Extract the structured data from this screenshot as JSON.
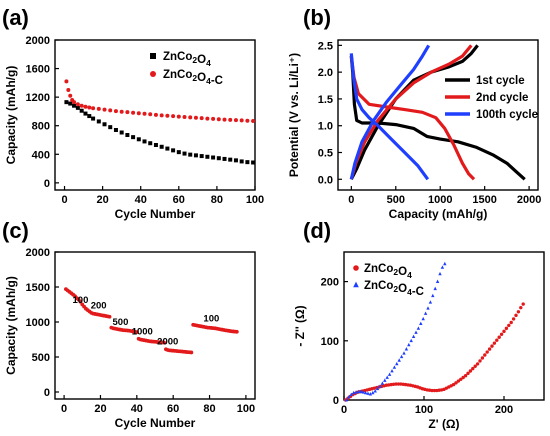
{
  "chart_data": [
    {
      "panel": "(a)",
      "type": "scatter",
      "xlabel": "Cycle Number",
      "ylabel": "Capacity (mAh/g)",
      "xlim": [
        -5,
        100
      ],
      "ylim": [
        -100,
        2000
      ],
      "xticks": [
        0,
        20,
        40,
        60,
        80,
        100
      ],
      "yticks": [
        0,
        400,
        800,
        1200,
        1600,
        2000
      ],
      "legend_position": "top-right",
      "series": [
        {
          "name": "ZnCo₂O₄",
          "color": "#000000",
          "marker": "square",
          "x": [
            1,
            3,
            5,
            7,
            9,
            11,
            13,
            15,
            18,
            21,
            24,
            27,
            30,
            33,
            36,
            39,
            42,
            45,
            48,
            51,
            54,
            57,
            60,
            63,
            66,
            69,
            72,
            75,
            78,
            81,
            84,
            87,
            90,
            93,
            96,
            99
          ],
          "y": [
            1130,
            1110,
            1080,
            1050,
            1010,
            970,
            935,
            900,
            860,
            820,
            780,
            740,
            705,
            670,
            640,
            610,
            580,
            555,
            530,
            505,
            480,
            455,
            430,
            410,
            395,
            385,
            375,
            365,
            355,
            345,
            335,
            325,
            315,
            300,
            290,
            285
          ]
        },
        {
          "name": "ZnCo₂O₄-C",
          "color": "#e31a1c",
          "marker": "circle",
          "x": [
            1,
            2,
            3,
            4,
            5,
            7,
            9,
            11,
            13,
            15,
            18,
            21,
            24,
            27,
            30,
            33,
            36,
            39,
            42,
            45,
            48,
            51,
            54,
            57,
            60,
            63,
            66,
            69,
            72,
            75,
            78,
            81,
            84,
            87,
            90,
            93,
            96,
            99
          ],
          "y": [
            1420,
            1300,
            1220,
            1160,
            1130,
            1100,
            1080,
            1065,
            1055,
            1045,
            1035,
            1025,
            1015,
            1005,
            995,
            990,
            982,
            975,
            968,
            960,
            952,
            945,
            940,
            934,
            928,
            922,
            917,
            912,
            906,
            900,
            895,
            890,
            886,
            882,
            878,
            874,
            870,
            866
          ]
        }
      ]
    },
    {
      "panel": "(b)",
      "type": "line",
      "xlabel": "Capacity (mAh/g)",
      "ylabel": "Potential (V vs. Li/Li⁺)",
      "xlim": [
        -150,
        2100
      ],
      "ylim": [
        -0.2,
        2.6
      ],
      "xticks": [
        0,
        500,
        1000,
        1500,
        2000
      ],
      "yticks": [
        0.0,
        0.5,
        1.0,
        1.5,
        2.0,
        2.5
      ],
      "legend_position": "center-right",
      "series": [
        {
          "name": "1st cycle",
          "color": "#000000",
          "discharge": [
            [
              0,
              2.3
            ],
            [
              15,
              2.0
            ],
            [
              35,
              1.4
            ],
            [
              60,
              1.1
            ],
            [
              120,
              1.05
            ],
            [
              300,
              1.05
            ],
            [
              500,
              1.02
            ],
            [
              700,
              0.95
            ],
            [
              850,
              0.8
            ],
            [
              1000,
              0.75
            ],
            [
              1200,
              0.7
            ],
            [
              1400,
              0.6
            ],
            [
              1600,
              0.45
            ],
            [
              1750,
              0.3
            ],
            [
              1850,
              0.15
            ],
            [
              1950,
              0.0
            ]
          ],
          "charge": [
            [
              0,
              0.0
            ],
            [
              60,
              0.2
            ],
            [
              150,
              0.55
            ],
            [
              300,
              1.0
            ],
            [
              500,
              1.5
            ],
            [
              700,
              1.85
            ],
            [
              900,
              2.0
            ],
            [
              1100,
              2.1
            ],
            [
              1250,
              2.2
            ],
            [
              1350,
              2.35
            ],
            [
              1420,
              2.5
            ]
          ]
        },
        {
          "name": "2nd cycle",
          "color": "#e31a1c",
          "discharge": [
            [
              0,
              2.3
            ],
            [
              30,
              1.9
            ],
            [
              80,
              1.6
            ],
            [
              200,
              1.4
            ],
            [
              400,
              1.35
            ],
            [
              600,
              1.3
            ],
            [
              800,
              1.25
            ],
            [
              950,
              1.15
            ],
            [
              1050,
              0.95
            ],
            [
              1150,
              0.65
            ],
            [
              1250,
              0.3
            ],
            [
              1320,
              0.1
            ],
            [
              1380,
              0.0
            ]
          ],
          "charge": [
            [
              0,
              0.0
            ],
            [
              50,
              0.3
            ],
            [
              150,
              0.7
            ],
            [
              300,
              1.1
            ],
            [
              500,
              1.5
            ],
            [
              700,
              1.8
            ],
            [
              900,
              2.0
            ],
            [
              1100,
              2.15
            ],
            [
              1250,
              2.3
            ],
            [
              1350,
              2.5
            ]
          ]
        },
        {
          "name": "100th cycle",
          "color": "#1f3fff",
          "discharge": [
            [
              0,
              2.35
            ],
            [
              25,
              1.9
            ],
            [
              60,
              1.5
            ],
            [
              120,
              1.3
            ],
            [
              200,
              1.15
            ],
            [
              300,
              1.0
            ],
            [
              450,
              0.75
            ],
            [
              600,
              0.5
            ],
            [
              750,
              0.25
            ],
            [
              860,
              0.0
            ]
          ],
          "charge": [
            [
              0,
              0.0
            ],
            [
              40,
              0.3
            ],
            [
              120,
              0.7
            ],
            [
              250,
              1.1
            ],
            [
              400,
              1.45
            ],
            [
              550,
              1.75
            ],
            [
              700,
              2.05
            ],
            [
              800,
              2.3
            ],
            [
              870,
              2.5
            ]
          ]
        }
      ]
    },
    {
      "panel": "(c)",
      "type": "scatter",
      "xlabel": "Cycle Number",
      "ylabel": "Capacity (mAh/g)",
      "xlim": [
        -5,
        105
      ],
      "ylim": [
        -100,
        2000
      ],
      "xticks": [
        0,
        20,
        40,
        60,
        80,
        100
      ],
      "yticks": [
        0,
        500,
        1000,
        1500,
        2000
      ],
      "series": [
        {
          "name": "ZnCo₂O₄-C",
          "color": "#e31a1c",
          "marker": "circle",
          "x": [
            1,
            2,
            3,
            4,
            5,
            6,
            7,
            8,
            9,
            10,
            11,
            12,
            13,
            14,
            15,
            16,
            17,
            18,
            19,
            20,
            21,
            22,
            23,
            24,
            25,
            26,
            27,
            28,
            29,
            30,
            31,
            32,
            33,
            34,
            35,
            36,
            37,
            38,
            39,
            40,
            41,
            42,
            43,
            44,
            45,
            46,
            47,
            48,
            49,
            50,
            51,
            52,
            53,
            54,
            55,
            56,
            57,
            58,
            59,
            60,
            61,
            62,
            63,
            64,
            65,
            66,
            67,
            68,
            69,
            70,
            71,
            72,
            73,
            74,
            75,
            76,
            77,
            78,
            79,
            80,
            81,
            82,
            83,
            84,
            85,
            86,
            87,
            88,
            89,
            90,
            91,
            92,
            93,
            94,
            95
          ],
          "y": [
            1470,
            1450,
            1430,
            1410,
            1390,
            1370,
            1340,
            1320,
            1290,
            1250,
            1220,
            1190,
            1170,
            1150,
            1130,
            1120,
            1115,
            1110,
            1105,
            1100,
            1095,
            1090,
            1085,
            1080,
            1075,
            920,
            910,
            905,
            900,
            895,
            890,
            885,
            882,
            880,
            878,
            875,
            870,
            865,
            860,
            855,
            760,
            750,
            745,
            740,
            735,
            730,
            725,
            722,
            720,
            718,
            715,
            712,
            710,
            708,
            705,
            610,
            600,
            595,
            592,
            590,
            588,
            585,
            582,
            580,
            578,
            575,
            572,
            570,
            568,
            565,
            960,
            955,
            950,
            945,
            940,
            935,
            930,
            925,
            920,
            918,
            915,
            912,
            910,
            905,
            900,
            895,
            890,
            885,
            880,
            876,
            872,
            868,
            865,
            862,
            860
          ]
        }
      ],
      "annotations": [
        {
          "text": "100",
          "x": 9,
          "y": 1270
        },
        {
          "text": "200",
          "x": 19,
          "y": 1190
        },
        {
          "text": "500",
          "x": 31,
          "y": 960
        },
        {
          "text": "1000",
          "x": 43,
          "y": 820
        },
        {
          "text": "2000",
          "x": 57,
          "y": 680
        },
        {
          "text": "100",
          "x": 81,
          "y": 1010
        }
      ]
    },
    {
      "panel": "(d)",
      "type": "scatter",
      "xlabel": "Z' (Ω)",
      "ylabel": "- Z'' (Ω)",
      "xlim": [
        0,
        250
      ],
      "ylim": [
        0,
        250
      ],
      "xticks": [
        0,
        100,
        200
      ],
      "yticks": [
        0,
        100,
        200
      ],
      "legend_position": "top-left",
      "series": [
        {
          "name": "ZnCo₂O₄",
          "color": "#e31a1c",
          "marker": "circle",
          "x": [
            2,
            5,
            8,
            11,
            14,
            17,
            20,
            23,
            26,
            29,
            32,
            35,
            38,
            41,
            44,
            47,
            50,
            53,
            56,
            59,
            62,
            65,
            68,
            71,
            74,
            77,
            80,
            83,
            86,
            89,
            92,
            95,
            98,
            101,
            104,
            107,
            110,
            113,
            116,
            119,
            122,
            125,
            128,
            131,
            134,
            137,
            140,
            143,
            146,
            149,
            152,
            155,
            158,
            161,
            164,
            167,
            170,
            173,
            176,
            179,
            182,
            185,
            188,
            191,
            194,
            197,
            200,
            203,
            206,
            209,
            212,
            215,
            218,
            221,
            224
          ],
          "y": [
            0,
            3,
            6,
            9,
            11,
            13,
            14,
            15,
            16,
            17,
            18,
            19,
            20,
            21,
            22,
            23,
            24,
            25,
            25.5,
            26,
            26.5,
            27,
            27,
            27,
            26.5,
            26,
            25.5,
            25,
            24,
            23,
            22,
            20.5,
            19,
            18,
            17,
            16.5,
            16,
            16,
            16,
            16.5,
            17,
            18,
            20,
            22,
            24,
            26,
            29,
            32,
            35,
            38,
            41,
            45,
            49,
            53,
            57,
            61,
            66,
            71,
            76,
            81,
            86,
            91,
            96,
            101,
            106,
            111,
            116,
            121,
            126,
            131,
            137,
            143,
            149,
            156,
            162
          ]
        },
        {
          "name": "ZnCo₂O₄-C",
          "color": "#1f3fff",
          "marker": "triangle",
          "x": [
            3,
            6,
            9,
            12,
            15,
            18,
            21,
            24,
            27,
            30,
            33,
            36,
            39,
            42,
            45,
            48,
            51,
            54,
            57,
            60,
            63,
            66,
            69,
            72,
            75,
            78,
            81,
            84,
            87,
            90,
            93,
            96,
            99,
            102,
            105,
            108,
            111,
            114,
            117,
            120,
            123,
            126
          ],
          "y": [
            0,
            5,
            9,
            12,
            13,
            14,
            14,
            13,
            12,
            11,
            10,
            12,
            15,
            19,
            23,
            28,
            33,
            38,
            43,
            49,
            55,
            61,
            67,
            73,
            79,
            86,
            93,
            100,
            107,
            114,
            121,
            129,
            137,
            146,
            155,
            165,
            176,
            188,
            200,
            213,
            224,
            230
          ]
        }
      ]
    }
  ]
}
